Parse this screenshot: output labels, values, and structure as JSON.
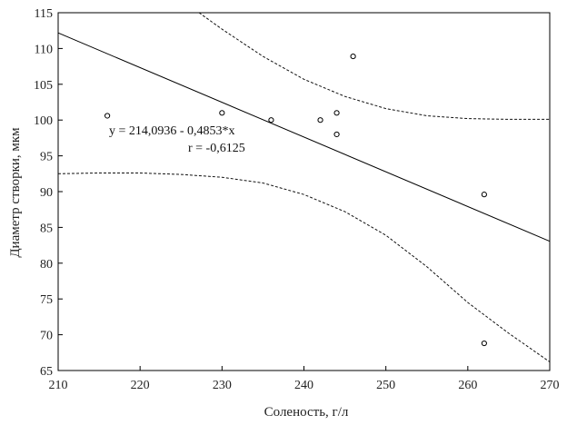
{
  "chart_data": {
    "type": "scatter",
    "title": "",
    "xlabel": "Соленость, г/л",
    "ylabel": "Диаметр створки, мкм",
    "xlim": [
      210,
      270
    ],
    "ylim": [
      65,
      115
    ],
    "xticks": [
      210,
      220,
      230,
      240,
      250,
      260,
      270
    ],
    "yticks": [
      65,
      70,
      75,
      80,
      85,
      90,
      95,
      100,
      105,
      110,
      115
    ],
    "grid": false,
    "points": [
      {
        "x": 216,
        "y": 100.6
      },
      {
        "x": 230,
        "y": 101.0
      },
      {
        "x": 236,
        "y": 100.0
      },
      {
        "x": 242,
        "y": 100.0
      },
      {
        "x": 244,
        "y": 101.0
      },
      {
        "x": 244,
        "y": 98.0
      },
      {
        "x": 246,
        "y": 108.9
      },
      {
        "x": 262,
        "y": 89.6
      },
      {
        "x": 262,
        "y": 68.8
      }
    ],
    "regression": {
      "intercept": 214.0936,
      "slope": -0.4853
    },
    "confidence_upper": [
      {
        "x": 227.2,
        "y": 115.0
      },
      {
        "x": 230,
        "y": 112.7
      },
      {
        "x": 235,
        "y": 108.9
      },
      {
        "x": 240,
        "y": 105.7
      },
      {
        "x": 245,
        "y": 103.3
      },
      {
        "x": 250,
        "y": 101.6
      },
      {
        "x": 255,
        "y": 100.6
      },
      {
        "x": 260,
        "y": 100.2
      },
      {
        "x": 265,
        "y": 100.1
      },
      {
        "x": 270,
        "y": 100.1
      }
    ],
    "confidence_lower": [
      {
        "x": 210,
        "y": 92.5
      },
      {
        "x": 215,
        "y": 92.6
      },
      {
        "x": 220,
        "y": 92.6
      },
      {
        "x": 225,
        "y": 92.4
      },
      {
        "x": 230,
        "y": 92.0
      },
      {
        "x": 235,
        "y": 91.2
      },
      {
        "x": 240,
        "y": 89.6
      },
      {
        "x": 245,
        "y": 87.2
      },
      {
        "x": 250,
        "y": 83.9
      },
      {
        "x": 255,
        "y": 79.5
      },
      {
        "x": 260,
        "y": 74.5
      },
      {
        "x": 265,
        "y": 70.2
      },
      {
        "x": 270,
        "y": 66.2
      }
    ],
    "annotations": {
      "equation": "y = 214,0936 - 0,4853*x",
      "r": "r = -0,6125"
    }
  }
}
